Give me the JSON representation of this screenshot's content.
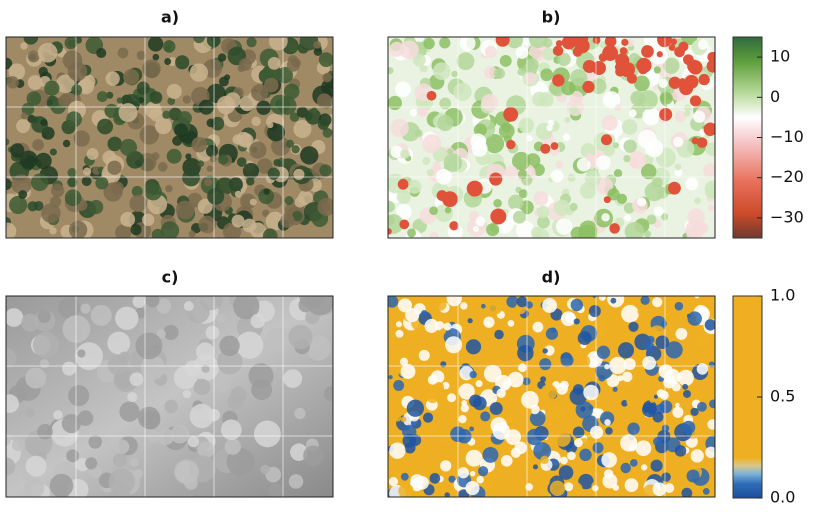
{
  "panels": [
    {
      "label": "a)"
    },
    {
      "label": "b)"
    },
    {
      "label": "c)"
    },
    {
      "label": "d)"
    }
  ],
  "colorbars": [
    {
      "ylim": [
        -35,
        15
      ],
      "yticks": [
        10,
        0,
        {
          "value": -10,
          "label": "−10"
        },
        {
          "value": -20,
          "label": "−20"
        },
        {
          "value": -30,
          "label": "−30"
        }
      ]
    },
    {
      "ylim": [
        0,
        1
      ],
      "yticks": [
        {
          "value": 1,
          "label": "1.0"
        },
        0.5,
        {
          "value": 0,
          "label": "0.0"
        }
      ]
    }
  ]
}
